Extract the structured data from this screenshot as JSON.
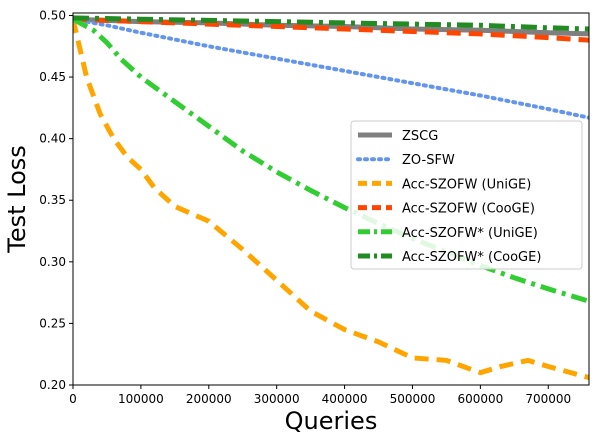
{
  "chart_data": {
    "type": "line",
    "xlabel": "Queries",
    "ylabel": "Test Loss",
    "xlim": [
      0,
      760000
    ],
    "ylim": [
      0.2,
      0.502
    ],
    "xticks": [
      0,
      100000,
      200000,
      300000,
      400000,
      500000,
      600000,
      700000
    ],
    "xtick_labels": [
      "0",
      "100000",
      "200000",
      "300000",
      "400000",
      "500000",
      "600000",
      "700000"
    ],
    "yticks": [
      0.2,
      0.25,
      0.3,
      0.35,
      0.4,
      0.45,
      0.5
    ],
    "ytick_labels": [
      "0.20",
      "0.25",
      "0.30",
      "0.35",
      "0.40",
      "0.45",
      "0.50"
    ],
    "grid": false,
    "legend_position": "center-right",
    "series": [
      {
        "name": "ZSCG",
        "color": "#7f7f7f",
        "style": "solid",
        "x": [
          0,
          100000,
          200000,
          300000,
          400000,
          500000,
          600000,
          700000,
          760000
        ],
        "y": [
          0.497,
          0.495,
          0.494,
          0.492,
          0.491,
          0.489,
          0.488,
          0.486,
          0.485
        ]
      },
      {
        "name": "ZO-SFW",
        "color": "#6495ed",
        "style": "dotted",
        "x": [
          0,
          50000,
          100000,
          200000,
          300000,
          400000,
          500000,
          600000,
          700000,
          760000
        ],
        "y": [
          0.497,
          0.492,
          0.486,
          0.475,
          0.465,
          0.455,
          0.445,
          0.435,
          0.424,
          0.417
        ]
      },
      {
        "name": "Acc-SZOFW (UniGE)",
        "color": "#ffa500",
        "style": "dashed",
        "x": [
          0,
          20000,
          40000,
          60000,
          80000,
          100000,
          120000,
          150000,
          200000,
          250000,
          300000,
          350000,
          400000,
          450000,
          500000,
          550000,
          600000,
          630000,
          670000,
          700000,
          760000
        ],
        "y": [
          0.497,
          0.45,
          0.42,
          0.4,
          0.385,
          0.375,
          0.36,
          0.345,
          0.333,
          0.31,
          0.285,
          0.26,
          0.245,
          0.235,
          0.222,
          0.22,
          0.21,
          0.215,
          0.22,
          0.215,
          0.206
        ]
      },
      {
        "name": "Acc-SZOFW (CooGE)",
        "color": "#ff4500",
        "style": "dashed",
        "x": [
          0,
          100000,
          200000,
          300000,
          400000,
          500000,
          600000,
          700000,
          760000
        ],
        "y": [
          0.497,
          0.495,
          0.493,
          0.491,
          0.489,
          0.487,
          0.485,
          0.482,
          0.48
        ]
      },
      {
        "name": "Acc-SZOFW* (UniGE)",
        "color": "#32cd32",
        "style": "dashdot",
        "x": [
          0,
          30000,
          50000,
          70000,
          100000,
          150000,
          200000,
          250000,
          300000,
          350000,
          400000,
          450000,
          500000,
          550000,
          600000,
          650000,
          700000,
          760000
        ],
        "y": [
          0.497,
          0.488,
          0.478,
          0.465,
          0.45,
          0.43,
          0.41,
          0.39,
          0.373,
          0.358,
          0.344,
          0.331,
          0.319,
          0.308,
          0.297,
          0.287,
          0.278,
          0.268
        ]
      },
      {
        "name": "Acc-SZOFW* (CooGE)",
        "color": "#228b22",
        "style": "dashdot",
        "x": [
          0,
          100000,
          200000,
          300000,
          400000,
          500000,
          600000,
          700000,
          760000
        ],
        "y": [
          0.498,
          0.497,
          0.496,
          0.495,
          0.494,
          0.493,
          0.492,
          0.49,
          0.489
        ]
      }
    ]
  }
}
